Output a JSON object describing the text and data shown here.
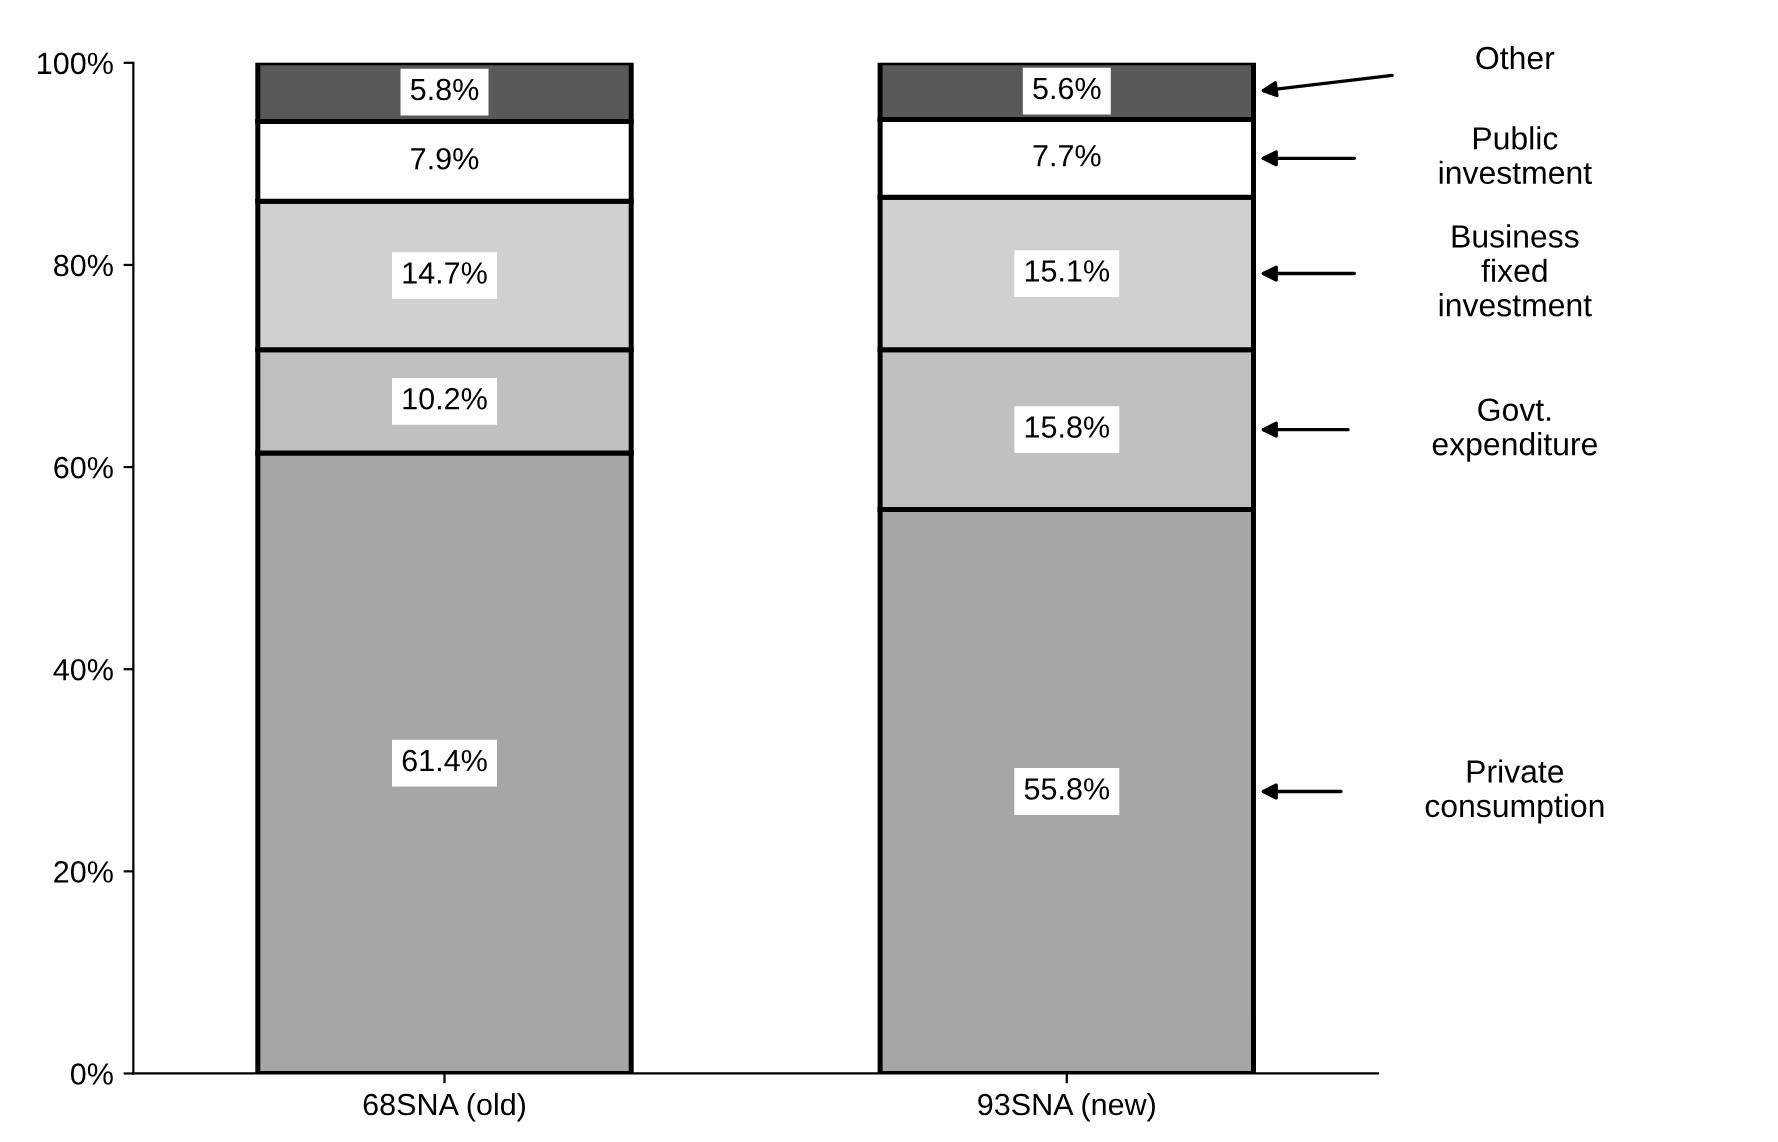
{
  "chart_data": {
    "type": "bar",
    "stacked": true,
    "categories": [
      "68SNA (old)",
      "93SNA (new)"
    ],
    "series": [
      {
        "name": "Private consumption",
        "color": "#a6a6a6",
        "values": [
          61.4,
          55.8
        ],
        "value_labels": [
          "61.4%",
          "55.8%"
        ]
      },
      {
        "name": "Govt. expenditure",
        "color": "#c0c0c0",
        "values": [
          10.2,
          15.8
        ],
        "value_labels": [
          "10.2%",
          "15.8%"
        ]
      },
      {
        "name": "Business fixed investment",
        "color": "#d0d0d0",
        "values": [
          14.7,
          15.1
        ],
        "value_labels": [
          "14.7%",
          "15.1%"
        ]
      },
      {
        "name": "Public investment",
        "color": "#ffffff",
        "values": [
          7.9,
          7.7
        ],
        "value_labels": [
          "7.9%",
          "7.7%"
        ]
      },
      {
        "name": "Other",
        "color": "#595959",
        "values": [
          5.8,
          5.6
        ],
        "value_labels": [
          "5.8%",
          "5.6%"
        ]
      }
    ],
    "ylim": [
      0,
      100
    ],
    "yticks": [
      {
        "value": 0,
        "label": "0%"
      },
      {
        "value": 20,
        "label": "20%"
      },
      {
        "value": 40,
        "label": "40%"
      },
      {
        "value": 60,
        "label": "60%"
      },
      {
        "value": 80,
        "label": "80%"
      },
      {
        "value": 100,
        "label": "100%"
      }
    ],
    "grid": false,
    "legend": false
  }
}
